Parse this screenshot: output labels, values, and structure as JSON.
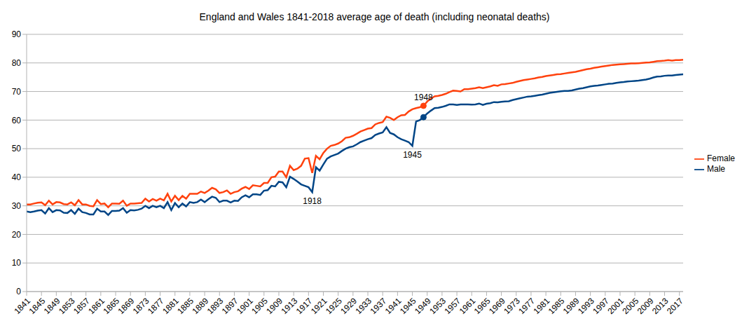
{
  "chart_data": {
    "type": "line",
    "title": "England and Wales 1841-2018 average age of death (including neonatal deaths)",
    "x": [
      1841,
      1842,
      1843,
      1844,
      1845,
      1846,
      1847,
      1848,
      1849,
      1850,
      1851,
      1852,
      1853,
      1854,
      1855,
      1856,
      1857,
      1858,
      1859,
      1860,
      1861,
      1862,
      1863,
      1864,
      1865,
      1866,
      1867,
      1868,
      1869,
      1870,
      1871,
      1872,
      1873,
      1874,
      1875,
      1876,
      1877,
      1878,
      1879,
      1880,
      1881,
      1882,
      1883,
      1884,
      1885,
      1886,
      1887,
      1888,
      1889,
      1890,
      1891,
      1892,
      1893,
      1894,
      1895,
      1896,
      1897,
      1898,
      1899,
      1900,
      1901,
      1902,
      1903,
      1904,
      1905,
      1906,
      1907,
      1908,
      1909,
      1910,
      1911,
      1912,
      1913,
      1914,
      1915,
      1916,
      1917,
      1918,
      1919,
      1920,
      1921,
      1922,
      1923,
      1924,
      1925,
      1926,
      1927,
      1928,
      1929,
      1930,
      1931,
      1932,
      1933,
      1934,
      1935,
      1936,
      1937,
      1938,
      1939,
      1940,
      1941,
      1942,
      1943,
      1944,
      1945,
      1946,
      1947,
      1948,
      1949,
      1950,
      1951,
      1952,
      1953,
      1954,
      1955,
      1956,
      1957,
      1958,
      1959,
      1960,
      1961,
      1962,
      1963,
      1964,
      1965,
      1966,
      1967,
      1968,
      1969,
      1970,
      1971,
      1972,
      1973,
      1974,
      1975,
      1976,
      1977,
      1978,
      1979,
      1980,
      1981,
      1982,
      1983,
      1984,
      1985,
      1986,
      1987,
      1988,
      1989,
      1990,
      1991,
      1992,
      1993,
      1994,
      1995,
      1996,
      1997,
      1998,
      1999,
      2000,
      2001,
      2002,
      2003,
      2004,
      2005,
      2006,
      2007,
      2008,
      2009,
      2010,
      2011,
      2012,
      2013,
      2014,
      2015,
      2016,
      2017,
      2018
    ],
    "series": [
      {
        "name": "Female",
        "color": "#ff420e",
        "values": [
          30.5,
          30.5,
          30.8,
          31.1,
          31.2,
          30.2,
          31.8,
          30.5,
          31.3,
          31.2,
          30.6,
          30.5,
          31.2,
          30.2,
          32.0,
          30.5,
          30.5,
          30.0,
          29.8,
          32.0,
          30.6,
          30.8,
          29.5,
          30.8,
          30.8,
          30.7,
          31.8,
          30.0,
          30.8,
          30.8,
          30.9,
          31.0,
          32.5,
          31.5,
          32.4,
          31.8,
          32.5,
          31.9,
          34.2,
          31.5,
          33.5,
          32.0,
          33.5,
          32.5,
          34.2,
          34.2,
          34.2,
          35.0,
          34.5,
          35.3,
          36.3,
          35.8,
          34.5,
          34.8,
          35.4,
          34.2,
          34.8,
          35.1,
          36.0,
          36.6,
          35.9,
          37.2,
          37.0,
          36.8,
          38.0,
          38.0,
          40.0,
          40.2,
          42.0,
          42.0,
          40.0,
          44.0,
          42.5,
          43.0,
          44.0,
          46.5,
          46.7,
          41.5,
          47.5,
          46.3,
          48.5,
          50.0,
          51.0,
          51.3,
          51.8,
          52.6,
          53.8,
          54.0,
          54.5,
          55.2,
          56.0,
          56.5,
          57.0,
          57.2,
          58.5,
          59.0,
          59.3,
          61.2,
          60.8,
          60.0,
          61.0,
          61.7,
          61.8,
          63.0,
          63.8,
          64.2,
          64.5,
          65.0,
          66.5,
          67.5,
          68.3,
          68.5,
          68.8,
          69.2,
          69.8,
          70.3,
          70.2,
          70.0,
          70.8,
          70.8,
          71.0,
          71.2,
          71.5,
          71.2,
          71.5,
          71.8,
          72.2,
          72.0,
          72.5,
          72.6,
          72.8,
          73.0,
          73.4,
          73.7,
          74.0,
          74.2,
          74.4,
          74.6,
          74.9,
          75.1,
          75.4,
          75.6,
          75.8,
          76.0,
          76.1,
          76.3,
          76.5,
          76.7,
          76.9,
          77.2,
          77.5,
          77.8,
          78.0,
          78.3,
          78.5,
          78.7,
          78.9,
          79.1,
          79.3,
          79.4,
          79.5,
          79.6,
          79.7,
          79.8,
          79.8,
          79.9,
          80.0,
          80.1,
          80.2,
          80.4,
          80.6,
          80.7,
          80.8,
          81.0,
          80.8,
          81.0,
          81.0,
          81.1
        ]
      },
      {
        "name": "Male",
        "color": "#004586",
        "values": [
          28.0,
          27.8,
          28.0,
          28.3,
          28.5,
          27.3,
          29.2,
          27.8,
          28.5,
          28.4,
          27.6,
          27.5,
          28.5,
          27.2,
          29.0,
          27.8,
          27.5,
          27.0,
          27.0,
          29.0,
          28.0,
          28.0,
          26.8,
          28.2,
          28.2,
          28.3,
          29.2,
          27.6,
          28.5,
          28.4,
          28.6,
          29.0,
          30.0,
          29.2,
          30.0,
          29.5,
          30.0,
          29.2,
          31.3,
          28.5,
          31.0,
          29.5,
          30.8,
          29.8,
          31.3,
          31.0,
          31.3,
          32.2,
          31.3,
          32.3,
          33.2,
          32.8,
          31.3,
          31.8,
          31.8,
          31.2,
          31.8,
          31.7,
          33.0,
          33.7,
          33.0,
          34.0,
          34.0,
          33.8,
          35.3,
          35.5,
          37.0,
          36.8,
          38.4,
          38.2,
          36.5,
          40.2,
          39.4,
          38.5,
          37.5,
          37.0,
          36.5,
          34.8,
          43.5,
          42.3,
          44.5,
          46.5,
          47.3,
          47.8,
          48.3,
          49.2,
          50.0,
          50.5,
          50.8,
          51.5,
          52.3,
          52.8,
          53.3,
          53.7,
          54.8,
          55.3,
          55.7,
          57.5,
          55.5,
          55.0,
          54.0,
          53.3,
          52.8,
          52.3,
          51.0,
          59.5,
          60.0,
          61.0,
          62.3,
          63.3,
          64.2,
          64.3,
          64.6,
          65.0,
          65.5,
          65.5,
          65.3,
          65.5,
          65.5,
          65.5,
          65.4,
          65.5,
          65.8,
          65.3,
          65.7,
          65.9,
          66.3,
          66.2,
          66.4,
          66.5,
          66.6,
          67.0,
          67.3,
          67.6,
          67.9,
          68.2,
          68.3,
          68.5,
          68.7,
          68.9,
          69.2,
          69.5,
          69.7,
          69.9,
          70.1,
          70.2,
          70.2,
          70.4,
          70.7,
          71.0,
          71.2,
          71.5,
          71.8,
          72.0,
          72.1,
          72.3,
          72.5,
          72.7,
          72.8,
          73.0,
          73.2,
          73.3,
          73.5,
          73.6,
          73.7,
          73.8,
          74.0,
          74.2,
          74.5,
          74.9,
          75.2,
          75.3,
          75.5,
          75.6,
          75.6,
          75.8,
          75.9,
          76.0
        ]
      }
    ],
    "xlim": [
      1841,
      2018
    ],
    "xticks": [
      1841,
      1845,
      1849,
      1853,
      1857,
      1861,
      1865,
      1869,
      1873,
      1877,
      1881,
      1885,
      1889,
      1893,
      1897,
      1901,
      1905,
      1909,
      1913,
      1917,
      1921,
      1925,
      1929,
      1933,
      1937,
      1941,
      1945,
      1949,
      1953,
      1957,
      1961,
      1965,
      1969,
      1973,
      1977,
      1981,
      1985,
      1989,
      1993,
      1997,
      2001,
      2005,
      2009,
      2013,
      2017
    ],
    "ylim": [
      0,
      90
    ],
    "yticks": [
      0,
      10,
      20,
      30,
      40,
      50,
      60,
      70,
      80,
      90
    ],
    "grid": true,
    "legend": "right",
    "annotations": [
      {
        "text": "1918",
        "x": 1918,
        "series": "Male"
      },
      {
        "text": "1945",
        "x": 1945,
        "series": "Male"
      },
      {
        "text": "1948",
        "x": 1948,
        "series": "Female",
        "marker": "circle"
      }
    ]
  }
}
